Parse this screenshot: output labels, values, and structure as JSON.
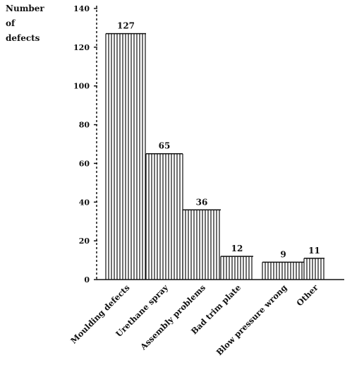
{
  "chart_data": {
    "type": "bar",
    "ylabel_lines": [
      "Number",
      "of",
      "defects"
    ],
    "categories": [
      "Moulding defects",
      "Urethane spray",
      "Assembly problems",
      "Bad trim plate",
      "Blow pressure wrong",
      "Other"
    ],
    "values": [
      127,
      65,
      36,
      12,
      9,
      11
    ],
    "data_labels": [
      "127",
      "65",
      "36",
      "12",
      "9",
      "11"
    ],
    "ylim": [
      0,
      140
    ],
    "yticks": [
      0,
      20,
      40,
      60,
      80,
      100,
      120,
      140
    ],
    "ytick_labels": [
      "0",
      "20",
      "40",
      "60",
      "80",
      "100",
      "120",
      "140"
    ],
    "bar_style": "vertical hatching",
    "grid": false,
    "color": "#111111"
  }
}
